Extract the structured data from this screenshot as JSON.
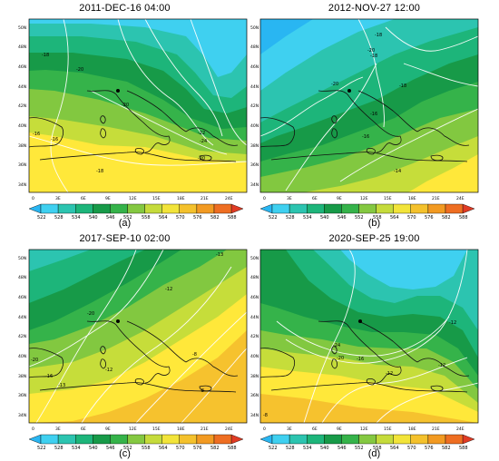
{
  "palette": [
    "#29b6f2",
    "#3fd0f0",
    "#2cc4b0",
    "#1db57a",
    "#179a48",
    "#35b34a",
    "#84c841",
    "#c5db3b",
    "#f2e43a",
    "#f4c12c",
    "#f29a22",
    "#ee6e22",
    "#e03b24"
  ],
  "colorbar_labels": [
    "522",
    "528",
    "534",
    "540",
    "546",
    "552",
    "558",
    "564",
    "570",
    "576",
    "582",
    "588"
  ],
  "lon_ticks": [
    "0",
    "3E",
    "6E",
    "9E",
    "12E",
    "15E",
    "18E",
    "21E",
    "24E"
  ],
  "lat_ticks": [
    "50N",
    "48N",
    "46N",
    "44N",
    "42N",
    "40N",
    "38N",
    "36N",
    "34N"
  ],
  "panels": [
    {
      "title": "2011-DEC-16 04:00",
      "label": "(a)",
      "contour_labels": [
        "-18",
        "-20",
        "-20",
        "-16",
        "-16",
        "-18",
        "-22",
        "-24",
        "-20"
      ]
    },
    {
      "title": "2012-NOV-27 12:00",
      "label": "(b)",
      "contour_labels": [
        "-18",
        "-20",
        "-18",
        "-20",
        "-18",
        "-16",
        "-16",
        "-14"
      ]
    },
    {
      "title": "2017-SEP-10 02:00",
      "label": "(c)",
      "contour_labels": [
        "-13",
        "-20",
        "-12",
        "-12",
        "-20",
        "-16",
        "-13",
        "-8",
        "-8"
      ]
    },
    {
      "title": "2020-SEP-25 19:00",
      "label": "(d)",
      "contour_labels": [
        "-12",
        "-24",
        "-20",
        "-16",
        "-12",
        "-12",
        "-8"
      ]
    }
  ]
}
